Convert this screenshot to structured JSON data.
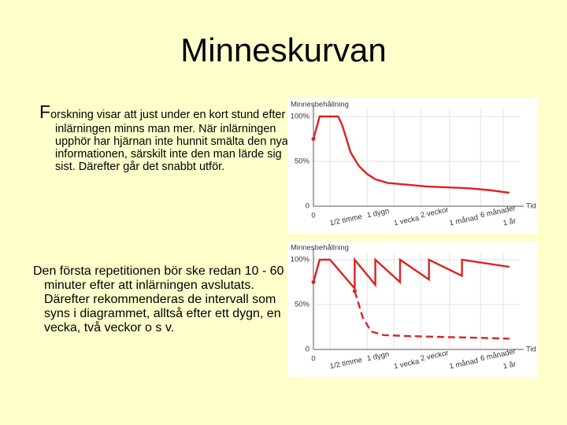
{
  "title": "Minneskurvan",
  "paragraphs": [
    "Forskning visar att just under en kort stund efter inlärningen minns man mer. När inlärningen upphör har hjärnan inte hunnit smälta den nya informationen, särskilt inte den man lärde sig sist. Därefter går det snabbt utför.",
    "Den första repetitionen bör ske redan 10 - 60 minuter efter att inlärningen avslutats. Därefter rekommenderas de intervall som syns i diagrammet, alltså efter ett dygn, en vecka, två veckor o s v."
  ],
  "chart_data": [
    {
      "type": "line",
      "y_label": "Minnesbehållning",
      "x_label": "Tid",
      "grid": true,
      "xlim": [
        0,
        100
      ],
      "ylim": [
        0,
        100
      ],
      "xticks": [
        {
          "value": 0,
          "label": "0"
        },
        {
          "value": 8,
          "label": "1/2 timme"
        },
        {
          "value": 26,
          "label": "1 dygn"
        },
        {
          "value": 39,
          "label": "1 vecka"
        },
        {
          "value": 52,
          "label": "2 veckor"
        },
        {
          "value": 66,
          "label": "1 månad"
        },
        {
          "value": 81,
          "label": "6 månader"
        },
        {
          "value": 92,
          "label": "1 år"
        }
      ],
      "yticks": [
        0,
        {
          "value": 50,
          "label": "50%"
        },
        {
          "value": 100,
          "label": "100%"
        }
      ],
      "series": [
        {
          "color": "#dd2222",
          "style": "solid",
          "x": [
            0,
            3,
            12,
            14,
            18,
            22,
            26,
            30,
            36,
            45,
            55,
            65,
            75,
            85,
            95
          ],
          "values": [
            75,
            100,
            100,
            90,
            60,
            45,
            36,
            30,
            26,
            24,
            22,
            21,
            20,
            18,
            15
          ]
        }
      ]
    },
    {
      "type": "line",
      "y_label": "Minnesbehållning",
      "x_label": "Tid",
      "grid": true,
      "xlim": [
        0,
        100
      ],
      "ylim": [
        0,
        100
      ],
      "xticks": [
        {
          "value": 0,
          "label": "0"
        },
        {
          "value": 8,
          "label": "1/2 timme"
        },
        {
          "value": 26,
          "label": "1 dygn"
        },
        {
          "value": 39,
          "label": "1 vecka"
        },
        {
          "value": 52,
          "label": "2 veckor"
        },
        {
          "value": 66,
          "label": "1 månad"
        },
        {
          "value": 81,
          "label": "6 månader"
        },
        {
          "value": 92,
          "label": "1 år"
        }
      ],
      "yticks": [
        0,
        {
          "value": 50,
          "label": "50%"
        },
        {
          "value": 100,
          "label": "100%"
        }
      ],
      "series": [
        {
          "color": "#dd2222",
          "style": "solid",
          "x": [
            0,
            3,
            8,
            20,
            20,
            30,
            30,
            42,
            42,
            56,
            56,
            72,
            72,
            95
          ],
          "values": [
            75,
            100,
            100,
            68,
            100,
            72,
            100,
            75,
            100,
            78,
            100,
            82,
            100,
            92
          ]
        },
        {
          "color": "#dd2222",
          "style": "dashed",
          "x": [
            20,
            24,
            28,
            34,
            45,
            60,
            80,
            95
          ],
          "values": [
            65,
            35,
            20,
            16,
            15,
            14,
            13,
            12
          ]
        }
      ]
    }
  ]
}
